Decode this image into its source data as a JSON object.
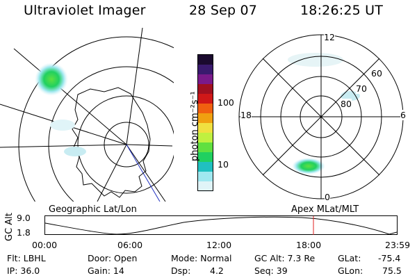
{
  "header": {
    "instrument": "Ultraviolet Imager",
    "date": "28 Sep 07",
    "time": "18:26:25 UT"
  },
  "colorbar": {
    "unit_label": "photon cm⁻²s⁻¹",
    "ticks": [
      "100",
      "10"
    ],
    "colors": [
      "#1a0a2e",
      "#3a1a6e",
      "#7a1a8a",
      "#a01020",
      "#d01818",
      "#f06010",
      "#f0a010",
      "#f0e040",
      "#c0f040",
      "#60e040",
      "#20d060",
      "#20c0c0",
      "#a0e8f0",
      "#e0f4f8"
    ]
  },
  "polar_plot": {
    "mlt_labels": {
      "top": "12",
      "left": "18",
      "right": "6",
      "bottom": "0"
    },
    "lat_labels": [
      "60",
      "70",
      "80"
    ]
  },
  "orbit_panel": {
    "left_label": "Geographic Lat/Lon",
    "right_label": "Apex MLat/MLT",
    "axis_title": "GC Alt",
    "y_ticks": [
      "9.0",
      "1.8"
    ],
    "x_ticks": [
      "00:00",
      "06:00",
      "12:00",
      "18:00",
      "23:59"
    ],
    "marker_color": "#e02020"
  },
  "info": {
    "filter": "Flt: LBHL",
    "ip": "IP: 36.0",
    "door": "Door: Open",
    "gain": "Gain: 14",
    "mode": "Mode: Normal",
    "dsp_label": "Dsp:",
    "dsp_value": "4.2",
    "gc_alt": "GC Alt: 7.3 Re",
    "seq": "Seq: 39",
    "glat_label": "GLat:",
    "glat_value": "-75.4",
    "glon_label": "GLon:",
    "glon_value": "75.5"
  }
}
